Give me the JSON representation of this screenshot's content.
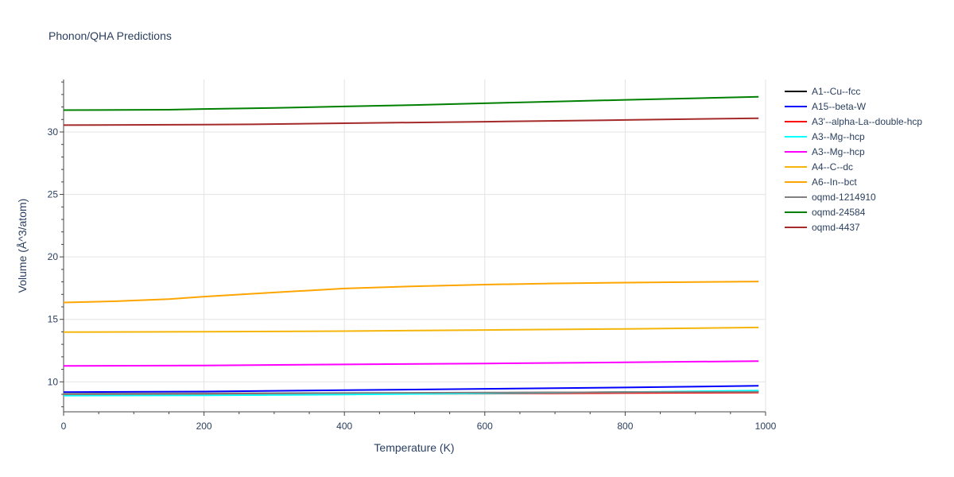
{
  "chart_data": {
    "type": "line",
    "title": "Phonon/QHA Predictions",
    "xlabel": "Temperature (K)",
    "ylabel": "Volume (Å^3/atom)",
    "xlim": [
      0,
      1000
    ],
    "ylim": [
      7.6,
      34.2
    ],
    "xticks": [
      0,
      200,
      400,
      600,
      800,
      1000
    ],
    "yticks": [
      10,
      15,
      20,
      25,
      30
    ],
    "grid": true,
    "legend_position": "right",
    "series": [
      {
        "name": "A1--Cu--fcc",
        "color": "#000000",
        "x": [
          0,
          200,
          400,
          600,
          800,
          990
        ],
        "y": [
          9.02,
          9.04,
          9.08,
          9.12,
          9.17,
          9.22
        ]
      },
      {
        "name": "A15--beta-W",
        "color": "#0000ff",
        "x": [
          0,
          200,
          400,
          600,
          800,
          990
        ],
        "y": [
          9.18,
          9.22,
          9.33,
          9.44,
          9.55,
          9.68
        ]
      },
      {
        "name": "A3'--alpha-La--double-hcp",
        "color": "#ff0000",
        "x": [
          0,
          200,
          400,
          600,
          800,
          990
        ],
        "y": [
          9.0,
          9.01,
          9.03,
          9.06,
          9.1,
          9.14
        ]
      },
      {
        "name": "A3--Mg--hcp",
        "color": "#00ffff",
        "x": [
          0,
          200,
          400,
          600,
          800,
          990
        ],
        "y": [
          8.9,
          8.92,
          8.98,
          9.08,
          9.18,
          9.3
        ]
      },
      {
        "name": "A3--Mg--hcp",
        "color": "#ff00ff",
        "x": [
          0,
          200,
          400,
          600,
          800,
          990
        ],
        "y": [
          11.27,
          11.31,
          11.39,
          11.47,
          11.56,
          11.66
        ]
      },
      {
        "name": "A4--C--dc",
        "color": "#f5b50a",
        "x": [
          0,
          200,
          400,
          600,
          800,
          990
        ],
        "y": [
          13.98,
          14.01,
          14.06,
          14.15,
          14.24,
          14.35
        ]
      },
      {
        "name": "A6--In--bct",
        "color": "#ffa500",
        "x": [
          0,
          75,
          150,
          200,
          300,
          400,
          500,
          600,
          700,
          800,
          900,
          990
        ],
        "y": [
          16.35,
          16.45,
          16.62,
          16.82,
          17.15,
          17.47,
          17.65,
          17.78,
          17.88,
          17.94,
          17.99,
          18.03
        ]
      },
      {
        "name": "oqmd-1214910",
        "color": "#808080",
        "x": [
          0,
          200,
          400,
          600,
          800,
          990
        ],
        "y": [
          9.06,
          9.08,
          9.11,
          9.14,
          9.17,
          9.2
        ]
      },
      {
        "name": "oqmd-24584",
        "color": "#008000",
        "x": [
          0,
          150,
          200,
          300,
          400,
          500,
          600,
          700,
          800,
          900,
          990
        ],
        "y": [
          31.75,
          31.78,
          31.84,
          31.93,
          32.04,
          32.16,
          32.3,
          32.43,
          32.57,
          32.7,
          32.82
        ]
      },
      {
        "name": "oqmd-4437",
        "color": "#a52a2a",
        "x": [
          0,
          200,
          270,
          400,
          600,
          800,
          990
        ],
        "y": [
          30.55,
          30.59,
          30.61,
          30.7,
          30.82,
          30.96,
          31.1
        ]
      }
    ]
  }
}
